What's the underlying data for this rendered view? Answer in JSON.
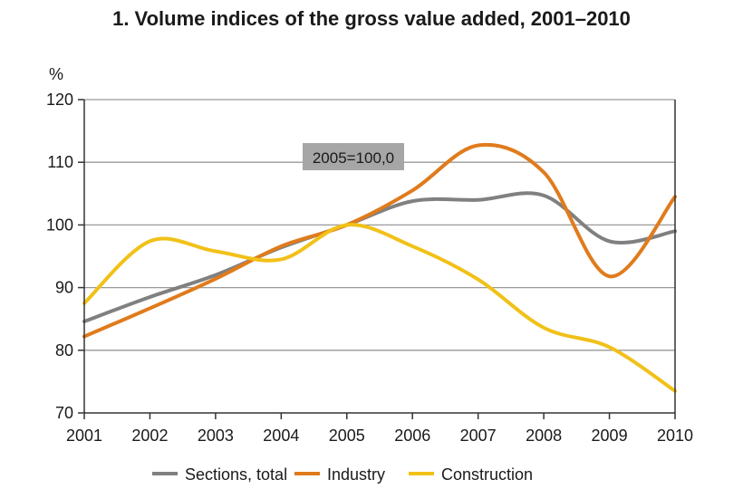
{
  "chart_data": {
    "type": "line",
    "title": "1. Volume indices of the gross value added, 2001–2010",
    "unit_label": "%",
    "annotation": "2005=100,0",
    "x": [
      "2001",
      "2002",
      "2003",
      "2004",
      "2005",
      "2006",
      "2007",
      "2008",
      "2009",
      "2010"
    ],
    "ylim": [
      70,
      120
    ],
    "yticks": [
      70,
      80,
      90,
      100,
      110,
      120
    ],
    "grid": true,
    "legend_position": "bottom",
    "series": [
      {
        "name": "Sections, total",
        "color": "#808080",
        "values": [
          84.6,
          88.5,
          92.0,
          96.4,
          100.0,
          103.8,
          104.0,
          104.7,
          97.4,
          99.0
        ]
      },
      {
        "name": "Industry",
        "color": "#e07b1c",
        "values": [
          82.2,
          86.7,
          91.4,
          96.6,
          100.0,
          105.5,
          112.7,
          108.4,
          91.8,
          104.5
        ]
      },
      {
        "name": "Construction",
        "color": "#f1c118",
        "values": [
          87.5,
          97.4,
          95.8,
          94.5,
          100.0,
          96.6,
          91.3,
          83.6,
          80.5,
          73.5
        ]
      }
    ]
  }
}
